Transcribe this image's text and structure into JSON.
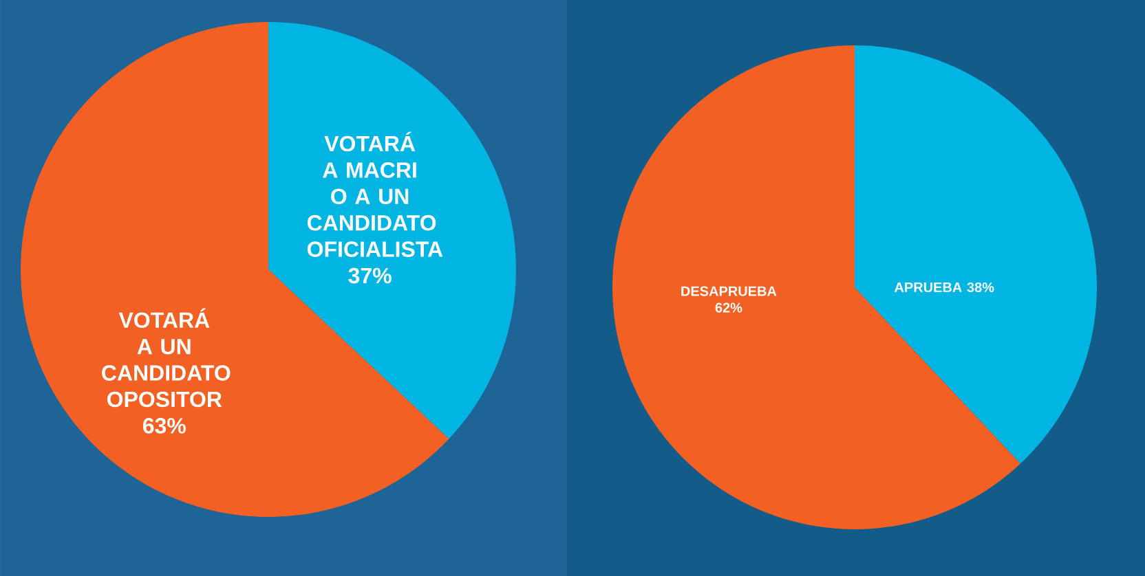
{
  "chart_data": [
    {
      "type": "pie",
      "categories": [
        "VOTARÁ A MACRI O A UN CANDIDATO OFICIALISTA",
        "VOTARÁ A UN CANDIDATO OPOSITOR"
      ],
      "values": [
        37,
        63
      ],
      "value_labels": [
        "37%",
        "63%"
      ],
      "colors": [
        "#00b5e2",
        "#f26024"
      ]
    },
    {
      "type": "pie",
      "categories": [
        "APRUEBA",
        "DESAPRUEBA"
      ],
      "values": [
        38,
        62
      ],
      "value_labels": [
        "38%",
        "62%"
      ],
      "colors": [
        "#00b5e2",
        "#f26024"
      ]
    }
  ]
}
